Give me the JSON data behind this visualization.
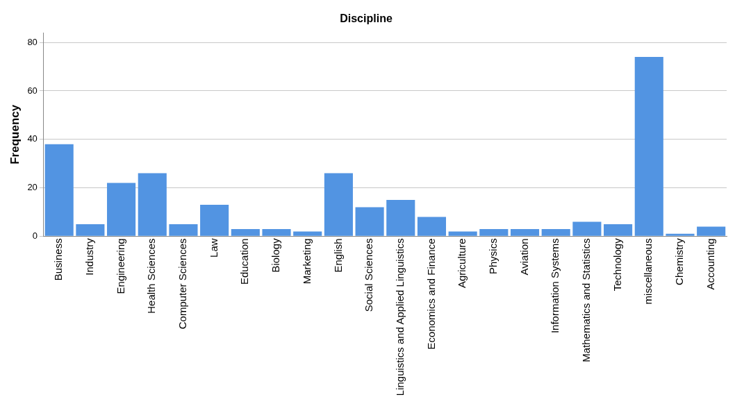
{
  "chart_data": {
    "type": "bar",
    "title": "Discipline",
    "ylabel": "Frequency",
    "categories": [
      "Business",
      "Industry",
      "Engineering",
      "Health Sciences",
      "Computer Sciences",
      "Law",
      "Education",
      "Biology",
      "Marketing",
      "English",
      "Social Sciences",
      "Linguistics and Applied Linguistics",
      "Economics and Finance",
      "Agriculture",
      "Physics",
      "Aviation",
      "Information Systems",
      "Mathematics and Statistics",
      "Technology",
      "miscellaneous",
      "Chemistry",
      "Accounting"
    ],
    "values": [
      38,
      5,
      22,
      26,
      5,
      13,
      3,
      3,
      2,
      26,
      12,
      15,
      8,
      2,
      3,
      3,
      3,
      6,
      5,
      74,
      1,
      4
    ],
    "color": "#5294e2",
    "ylim": [
      0,
      84
    ],
    "yticks": [
      0,
      20,
      40,
      60,
      80
    ],
    "grid": "y",
    "legend": false
  }
}
